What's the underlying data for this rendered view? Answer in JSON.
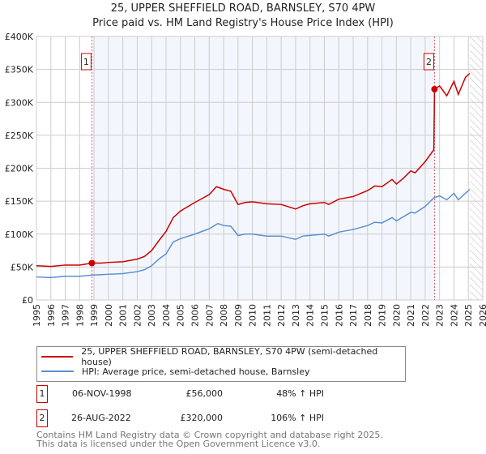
{
  "chart_data": {
    "type": "line",
    "title": "25, UPPER SHEFFIELD ROAD, BARNSLEY, S70 4PW",
    "subtitle": "Price paid vs. HM Land Registry's House Price Index (HPI)",
    "xlim": [
      1995,
      2026
    ],
    "ylim": [
      0,
      400000
    ],
    "yticks": [
      {
        "v": 0,
        "label": "£0"
      },
      {
        "v": 50000,
        "label": "£50K"
      },
      {
        "v": 100000,
        "label": "£100K"
      },
      {
        "v": 150000,
        "label": "£150K"
      },
      {
        "v": 200000,
        "label": "£200K"
      },
      {
        "v": 250000,
        "label": "£250K"
      },
      {
        "v": 300000,
        "label": "£300K"
      },
      {
        "v": 350000,
        "label": "£350K"
      },
      {
        "v": 400000,
        "label": "£400K"
      }
    ],
    "xticks": [
      "1995",
      "1996",
      "1997",
      "1998",
      "1999",
      "2000",
      "2001",
      "2002",
      "2003",
      "2004",
      "2005",
      "2006",
      "2007",
      "2008",
      "2009",
      "2010",
      "2011",
      "2012",
      "2013",
      "2014",
      "2015",
      "2016",
      "2017",
      "2018",
      "2019",
      "2020",
      "2021",
      "2022",
      "2023",
      "2024",
      "2025",
      "2026"
    ],
    "grid": true,
    "shaded_range": [
      1998.85,
      2022.65
    ],
    "hatched_from": 2025.1,
    "series": [
      {
        "name": "25, UPPER SHEFFIELD ROAD, BARNSLEY, S70 4PW (semi-detached house)",
        "color": "#cc0000",
        "x": [
          1995,
          1996,
          1997,
          1998,
          1998.85,
          1999.5,
          2000,
          2001,
          2002,
          2002.5,
          2003,
          2003.5,
          2004,
          2004.5,
          2005,
          2006,
          2007,
          2007.5,
          2008,
          2008.5,
          2009,
          2009.5,
          2010,
          2011,
          2012,
          2013,
          2013.5,
          2014,
          2015,
          2015.3,
          2016,
          2017,
          2018,
          2018.5,
          2019,
          2019.7,
          2020,
          2020.5,
          2021,
          2021.3,
          2022,
          2022.6,
          2022.65,
          2023,
          2023.5,
          2024,
          2024.3,
          2024.8,
          2025.1
        ],
        "y": [
          52000,
          51000,
          53000,
          53000,
          56000,
          56000,
          57000,
          58000,
          62000,
          66000,
          75000,
          90000,
          104000,
          125000,
          135000,
          148000,
          160000,
          172000,
          168000,
          165000,
          145000,
          148000,
          149000,
          146000,
          145000,
          138000,
          143000,
          146000,
          148000,
          145000,
          153000,
          157000,
          166000,
          173000,
          172000,
          183000,
          176000,
          185000,
          196000,
          193000,
          210000,
          228000,
          320000,
          325000,
          310000,
          332000,
          312000,
          338000,
          344000
        ]
      },
      {
        "name": "HPI: Average price, semi-detached house, Barnsley",
        "color": "#5b8fd4",
        "x": [
          1995,
          1996,
          1997,
          1998,
          1999,
          2000,
          2001,
          2002,
          2002.5,
          2003,
          2003.5,
          2004,
          2004.5,
          2005,
          2006,
          2007,
          2007.6,
          2008,
          2008.5,
          2009,
          2009.5,
          2010,
          2011,
          2012,
          2013,
          2013.5,
          2014,
          2015,
          2015.3,
          2016,
          2017,
          2018,
          2018.5,
          2019,
          2019.7,
          2020,
          2021,
          2021.3,
          2022,
          2022.6,
          2023,
          2023.5,
          2024,
          2024.3,
          2025,
          2025.1
        ],
        "y": [
          35000,
          34000,
          36000,
          36000,
          38000,
          39000,
          40000,
          43000,
          46000,
          52000,
          62000,
          70000,
          88000,
          93000,
          100000,
          108000,
          116000,
          113000,
          112000,
          98000,
          100000,
          100000,
          97000,
          97000,
          92000,
          97000,
          98000,
          100000,
          97000,
          103000,
          107000,
          113000,
          118000,
          117000,
          125000,
          120000,
          133000,
          132000,
          142000,
          155000,
          158000,
          152000,
          162000,
          152000,
          166000,
          168000
        ]
      }
    ],
    "sales": [
      {
        "id": "1",
        "x": 1998.85,
        "y": 56000,
        "date": "06-NOV-1998",
        "price": "£56,000",
        "hpi": "48% ↑ HPI"
      },
      {
        "id": "2",
        "x": 2022.65,
        "y": 320000,
        "date": "26-AUG-2022",
        "price": "£320,000",
        "hpi": "106% ↑ HPI"
      }
    ]
  },
  "footer": {
    "line1": "Contains HM Land Registry data © Crown copyright and database right 2025.",
    "line2": "This data is licensed under the Open Government Licence v3.0."
  }
}
